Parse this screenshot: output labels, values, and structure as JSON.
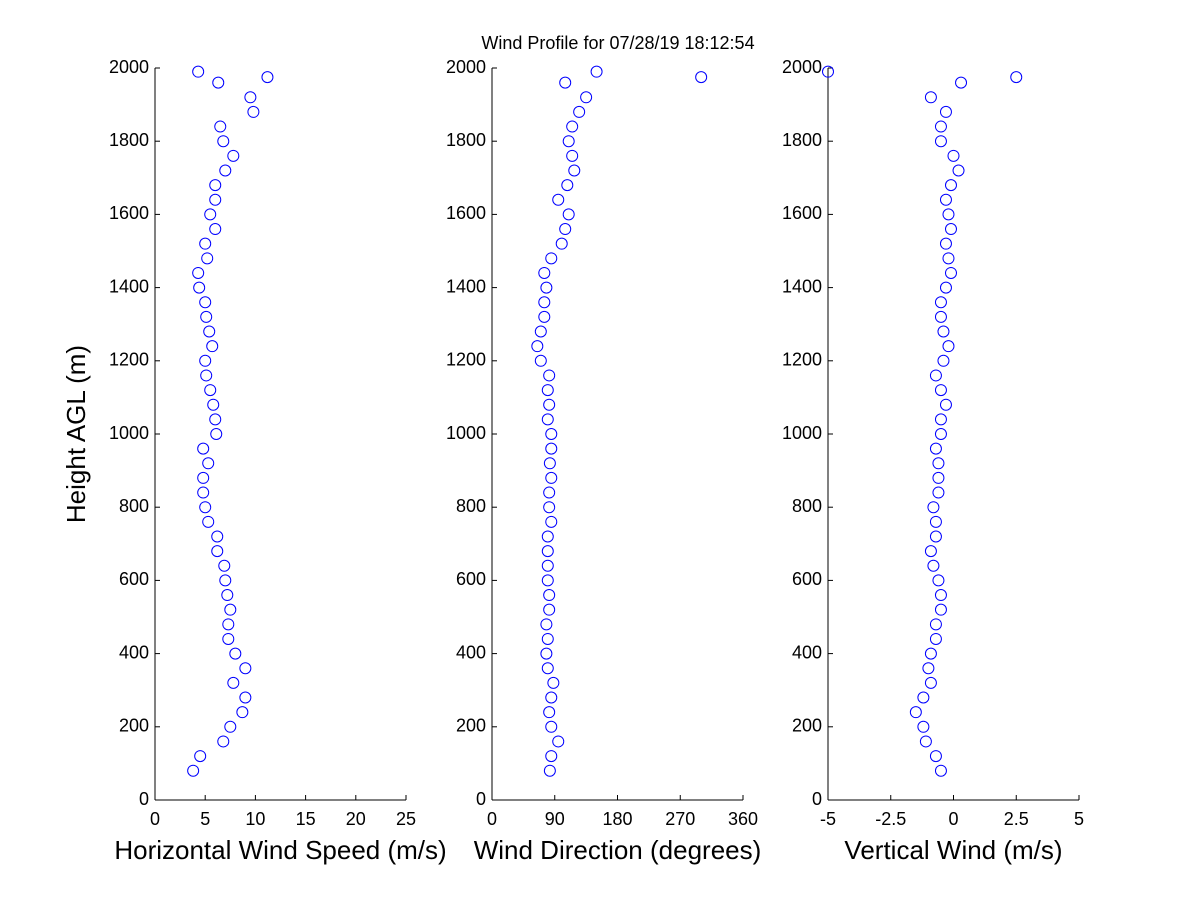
{
  "chart_data": [
    {
      "type": "scatter",
      "title": "Wind Profile for  07/28/19 18:12:54",
      "xlabel": "Horizontal Wind Speed (m/s)",
      "ylabel": "Height AGL (m)",
      "color": "#0000ff",
      "x": [
        3.8,
        4.5,
        6.8,
        7.5,
        8.7,
        9,
        7.8,
        9,
        8,
        7.3,
        7.3,
        7.5,
        7.2,
        7,
        6.9,
        6.2,
        6.2,
        5.3,
        5,
        4.8,
        4.8,
        5.3,
        4.8,
        6.1,
        6,
        5.8,
        5.5,
        5.1,
        5,
        5.7,
        5.4,
        5.1,
        5,
        4.4,
        4.3,
        5.2,
        5,
        6,
        5.5,
        6,
        6,
        7,
        7.8,
        6.8,
        6.5,
        9.8,
        9.5,
        6.3,
        11.2,
        4.3
      ],
      "y": [
        80,
        120,
        160,
        200,
        240,
        280,
        320,
        360,
        400,
        440,
        480,
        520,
        560,
        600,
        640,
        680,
        720,
        760,
        800,
        840,
        880,
        920,
        960,
        1000,
        1040,
        1080,
        1120,
        1160,
        1200,
        1240,
        1280,
        1320,
        1360,
        1400,
        1440,
        1480,
        1520,
        1560,
        1600,
        1640,
        1680,
        1720,
        1760,
        1800,
        1840,
        1880,
        1920,
        1960,
        1975,
        1990
      ],
      "xlim": [
        0,
        25
      ],
      "xticks": [
        0,
        5,
        10,
        15,
        20,
        25
      ],
      "ylim": [
        0,
        2000
      ],
      "yticks": [
        0,
        200,
        400,
        600,
        800,
        1000,
        1200,
        1400,
        1600,
        1800,
        2000
      ]
    },
    {
      "type": "scatter",
      "xlabel": "Wind Direction (degrees)",
      "color": "#0000ff",
      "x": [
        83,
        85,
        95,
        85,
        82,
        85,
        88,
        80,
        78,
        80,
        78,
        82,
        82,
        80,
        80,
        80,
        80,
        85,
        82,
        82,
        85,
        83,
        85,
        85,
        80,
        82,
        80,
        82,
        70,
        65,
        70,
        75,
        75,
        78,
        75,
        85,
        100,
        105,
        110,
        95,
        108,
        118,
        115,
        110,
        115,
        125,
        135,
        105,
        300,
        150
      ],
      "y": [
        80,
        120,
        160,
        200,
        240,
        280,
        320,
        360,
        400,
        440,
        480,
        520,
        560,
        600,
        640,
        680,
        720,
        760,
        800,
        840,
        880,
        920,
        960,
        1000,
        1040,
        1080,
        1120,
        1160,
        1200,
        1240,
        1280,
        1320,
        1360,
        1400,
        1440,
        1480,
        1520,
        1560,
        1600,
        1640,
        1680,
        1720,
        1760,
        1800,
        1840,
        1880,
        1920,
        1960,
        1975,
        1990
      ],
      "xlim": [
        0,
        360
      ],
      "xticks": [
        0,
        90,
        180,
        270,
        360
      ],
      "ylim": [
        0,
        2000
      ],
      "yticks": [
        0,
        200,
        400,
        600,
        800,
        1000,
        1200,
        1400,
        1600,
        1800,
        2000
      ]
    },
    {
      "type": "scatter",
      "xlabel": "Vertical Wind (m/s)",
      "color": "#0000ff",
      "x": [
        -0.5,
        -0.7,
        -1.1,
        -1.2,
        -1.5,
        -1.2,
        -0.9,
        -1,
        -0.9,
        -0.7,
        -0.7,
        -0.5,
        -0.5,
        -0.6,
        -0.8,
        -0.9,
        -0.7,
        -0.7,
        -0.8,
        -0.6,
        -0.6,
        -0.6,
        -0.7,
        -0.5,
        -0.5,
        -0.3,
        -0.5,
        -0.7,
        -0.4,
        -0.2,
        -0.4,
        -0.5,
        -0.5,
        -0.3,
        -0.1,
        -0.2,
        -0.3,
        -0.1,
        -0.2,
        -0.3,
        -0.1,
        0.2,
        0,
        -0.5,
        -0.5,
        -0.3,
        -0.9,
        0.3,
        2.5,
        -5
      ],
      "y": [
        80,
        120,
        160,
        200,
        240,
        280,
        320,
        360,
        400,
        440,
        480,
        520,
        560,
        600,
        640,
        680,
        720,
        760,
        800,
        840,
        880,
        920,
        960,
        1000,
        1040,
        1080,
        1120,
        1160,
        1200,
        1240,
        1280,
        1320,
        1360,
        1400,
        1440,
        1480,
        1520,
        1560,
        1600,
        1640,
        1680,
        1720,
        1760,
        1800,
        1840,
        1880,
        1920,
        1960,
        1975,
        1990
      ],
      "xlim": [
        -5,
        5
      ],
      "xticks": [
        -5,
        -2.5,
        0,
        2.5,
        5
      ],
      "ylim": [
        0,
        2000
      ],
      "yticks": [
        0,
        200,
        400,
        600,
        800,
        1000,
        1200,
        1400,
        1600,
        1800,
        2000
      ]
    }
  ]
}
